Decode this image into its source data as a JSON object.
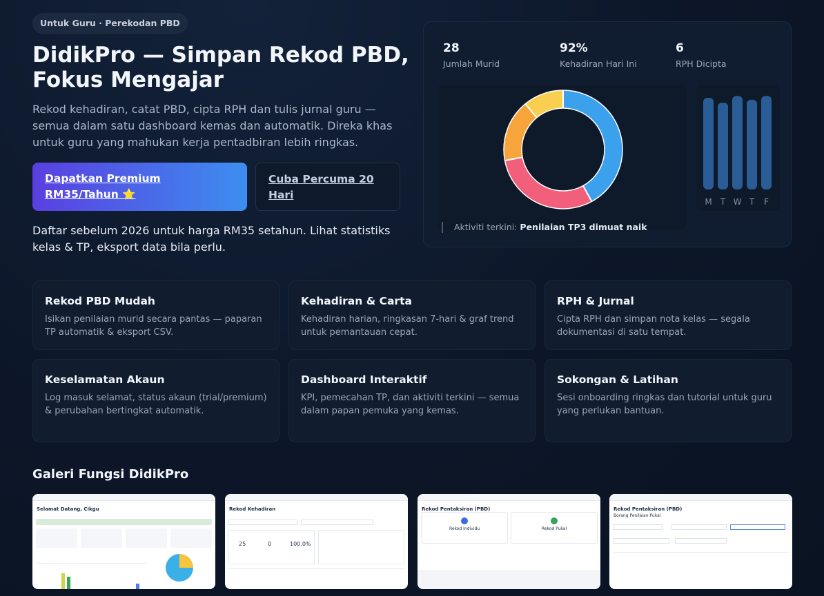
{
  "hero": {
    "badge": "Untuk Guru · Perekodan PBD",
    "title": "DidikPro — Simpan Rekod PBD, Fokus Mengajar",
    "description": "Rekod kehadiran, catat PBD, cipta RPH dan tulis jurnal guru — semua dalam satu dashboard kemas dan automatik. Direka khas untuk guru yang mahukan kerja pentadbiran lebih ringkas.",
    "primary_button": "Dapatkan Premium RM35/Tahun ⭐",
    "secondary_button": "Cuba Percuma 20 Hari",
    "note": "Daftar sebelum 2026 untuk harga RM35 setahun. Lihat statistiks kelas & TP, eksport data bila perlu."
  },
  "dashboard": {
    "stats": [
      {
        "value": "28",
        "label": "Jumlah Murid"
      },
      {
        "value": "92%",
        "label": "Kehadiran Hari Ini"
      },
      {
        "value": "6",
        "label": "RPH Dicipta"
      }
    ],
    "activity_prefix": "Aktiviti terkini:",
    "activity_text": "Penilaian TP3 dimuat naik"
  },
  "chart_data": [
    {
      "type": "pie",
      "donut": true,
      "slices": [
        {
          "value": 42,
          "color": "#3ba1ec"
        },
        {
          "value": 30,
          "color": "#f25f7a"
        },
        {
          "value": 17,
          "color": "#f7a53b"
        },
        {
          "value": 11,
          "color": "#f9cf4f"
        }
      ]
    },
    {
      "type": "bar",
      "categories": [
        "M",
        "T",
        "W",
        "T",
        "F"
      ],
      "values": [
        95,
        90,
        97,
        93,
        97
      ],
      "color": "#2a5d96"
    }
  ],
  "features": [
    {
      "title": "Rekod PBD Mudah",
      "text": "Isikan penilaian murid secara pantas — paparan TP automatik & eksport CSV."
    },
    {
      "title": "Kehadiran & Carta",
      "text": "Kehadiran harian, ringkasan 7-hari & graf trend untuk pemantauan cepat."
    },
    {
      "title": "RPH & Jurnal",
      "text": "Cipta RPH dan simpan nota kelas — segala dokumentasi di satu tempat."
    },
    {
      "title": "Keselamatan Akaun",
      "text": "Log masuk selamat, status akaun (trial/premium) & perubahan bertingkat automatik."
    },
    {
      "title": "Dashboard Interaktif",
      "text": "KPI, pemecahan TP, dan aktiviti terkini — semua dalam papan pemuka yang kemas."
    },
    {
      "title": "Sokongan & Latihan",
      "text": "Sesi onboarding ringkas dan tutorial untuk guru yang perlukan bantuan."
    }
  ],
  "gallery": {
    "title": "Galeri Fungsi DidikPro",
    "shots": [
      {
        "heading": "Selamat Datang, Cikgu"
      },
      {
        "heading": "Rekod Kehadiran",
        "stat_a": "25",
        "stat_b": "0",
        "stat_c": "100.0%"
      },
      {
        "heading": "Rekod Pentaksiran (PBD)",
        "opt_a": "Rekod Individu",
        "opt_b": "Rekod Pukal"
      },
      {
        "heading": "Rekod Pentaksiran (PBD)",
        "sub": "Borang Penilaian Pukal"
      }
    ]
  }
}
